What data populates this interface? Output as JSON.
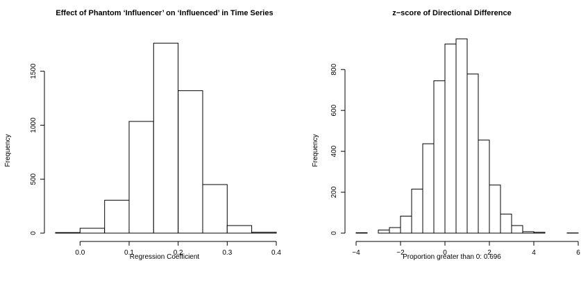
{
  "chart_data": [
    {
      "type": "bar",
      "title": "Effect of Phantom ‘Influencer’ on ‘Influenced’ in Time Series",
      "xlabel": "Regression Coefficient",
      "ylabel": "Frequency",
      "bin_edges": [
        -0.05,
        0.0,
        0.05,
        0.1,
        0.15,
        0.2,
        0.25,
        0.3,
        0.35,
        0.4
      ],
      "values": [
        5,
        45,
        305,
        1035,
        1760,
        1320,
        450,
        70,
        8
      ],
      "xlim": [
        -0.05,
        0.4
      ],
      "ylim": [
        0,
        1800
      ],
      "xticks": [
        "0.0",
        "0.1",
        "0.2",
        "0.3",
        "0.4"
      ],
      "xtick_values": [
        0.0,
        0.1,
        0.2,
        0.3,
        0.4
      ],
      "yticks": [
        "0",
        "500",
        "1000",
        "1500"
      ],
      "ytick_values": [
        0,
        500,
        1000,
        1500
      ],
      "grid": false
    },
    {
      "type": "bar",
      "title": "z−score of Directional Difference",
      "xlabel": "Proportion greater than 0: 0.696",
      "ylabel": "Frequency",
      "bin_edges": [
        -4,
        -3.5,
        -3,
        -2.5,
        -2,
        -1.5,
        -1,
        -0.5,
        0,
        0.5,
        1,
        1.5,
        2,
        2.5,
        3,
        3.5,
        4,
        4.5,
        5,
        5.5,
        6
      ],
      "values": [
        2,
        0,
        15,
        27,
        83,
        215,
        437,
        745,
        925,
        950,
        778,
        455,
        235,
        93,
        37,
        7,
        4,
        0,
        0,
        1
      ],
      "xlim": [
        -4,
        6
      ],
      "ylim": [
        0,
        950
      ],
      "xticks": [
        "−4",
        "−2",
        "0",
        "2",
        "4",
        "6"
      ],
      "xtick_values": [
        -4,
        -2,
        0,
        2,
        4,
        6
      ],
      "yticks": [
        "0",
        "200",
        "400",
        "600",
        "800"
      ],
      "ytick_values": [
        0,
        200,
        400,
        600,
        800
      ],
      "grid": false
    }
  ]
}
